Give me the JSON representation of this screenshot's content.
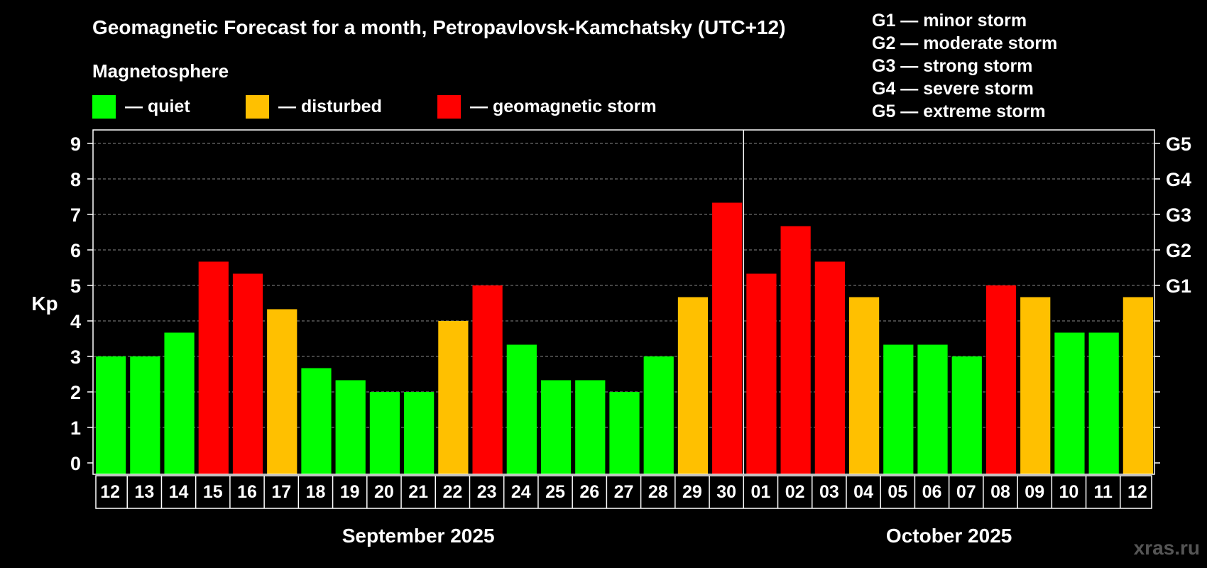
{
  "chart_data": {
    "type": "bar",
    "title": "Geomagnetic Forecast for a month, Petropavlovsk-Kamchatsky (UTC+12)",
    "legend_title": "Magnetosphere",
    "legend": [
      {
        "label": "— quiet",
        "color": "#00ff00",
        "key": "quiet"
      },
      {
        "label": "— disturbed",
        "color": "#ffc000",
        "key": "disturbed"
      },
      {
        "label": "— geomagnetic storm",
        "color": "#ff0000",
        "key": "storm"
      }
    ],
    "storm_scale": [
      "G1 — minor storm",
      "G2 — moderate storm",
      "G3 — strong storm",
      "G4 — severe storm",
      "G5 — extreme storm"
    ],
    "ylabel": "Kp",
    "ylim": [
      0,
      9
    ],
    "yticks": [
      "0",
      "1",
      "2",
      "3",
      "4",
      "5",
      "6",
      "7",
      "8",
      "9"
    ],
    "right_axis_labels": [
      {
        "value": 5,
        "label": "G1"
      },
      {
        "value": 6,
        "label": "G2"
      },
      {
        "value": 7,
        "label": "G3"
      },
      {
        "value": 8,
        "label": "G4"
      },
      {
        "value": 9,
        "label": "G5"
      }
    ],
    "grid": "dashed horizontal",
    "months": [
      {
        "label": "September 2025",
        "start_index": 0,
        "end_index": 18
      },
      {
        "label": "October 2025",
        "start_index": 19,
        "end_index": 30
      }
    ],
    "categories": [
      "12",
      "13",
      "14",
      "15",
      "16",
      "17",
      "18",
      "19",
      "20",
      "21",
      "22",
      "23",
      "24",
      "25",
      "26",
      "27",
      "28",
      "29",
      "30",
      "01",
      "02",
      "03",
      "04",
      "05",
      "06",
      "07",
      "08",
      "09",
      "10",
      "11",
      "12"
    ],
    "values": [
      3.0,
      3.0,
      3.67,
      5.67,
      5.33,
      4.33,
      2.67,
      2.33,
      2.0,
      2.0,
      4.0,
      5.0,
      3.33,
      2.33,
      2.33,
      2.0,
      3.0,
      4.67,
      7.33,
      5.33,
      6.67,
      5.67,
      4.67,
      3.33,
      3.33,
      3.0,
      5.0,
      4.67,
      3.67,
      3.67,
      4.67
    ],
    "levels": [
      "quiet",
      "quiet",
      "quiet",
      "storm",
      "storm",
      "disturbed",
      "quiet",
      "quiet",
      "quiet",
      "quiet",
      "disturbed",
      "storm",
      "quiet",
      "quiet",
      "quiet",
      "quiet",
      "quiet",
      "disturbed",
      "storm",
      "storm",
      "storm",
      "storm",
      "disturbed",
      "quiet",
      "quiet",
      "quiet",
      "storm",
      "disturbed",
      "quiet",
      "quiet",
      "disturbed"
    ]
  },
  "watermark": "xras.ru"
}
